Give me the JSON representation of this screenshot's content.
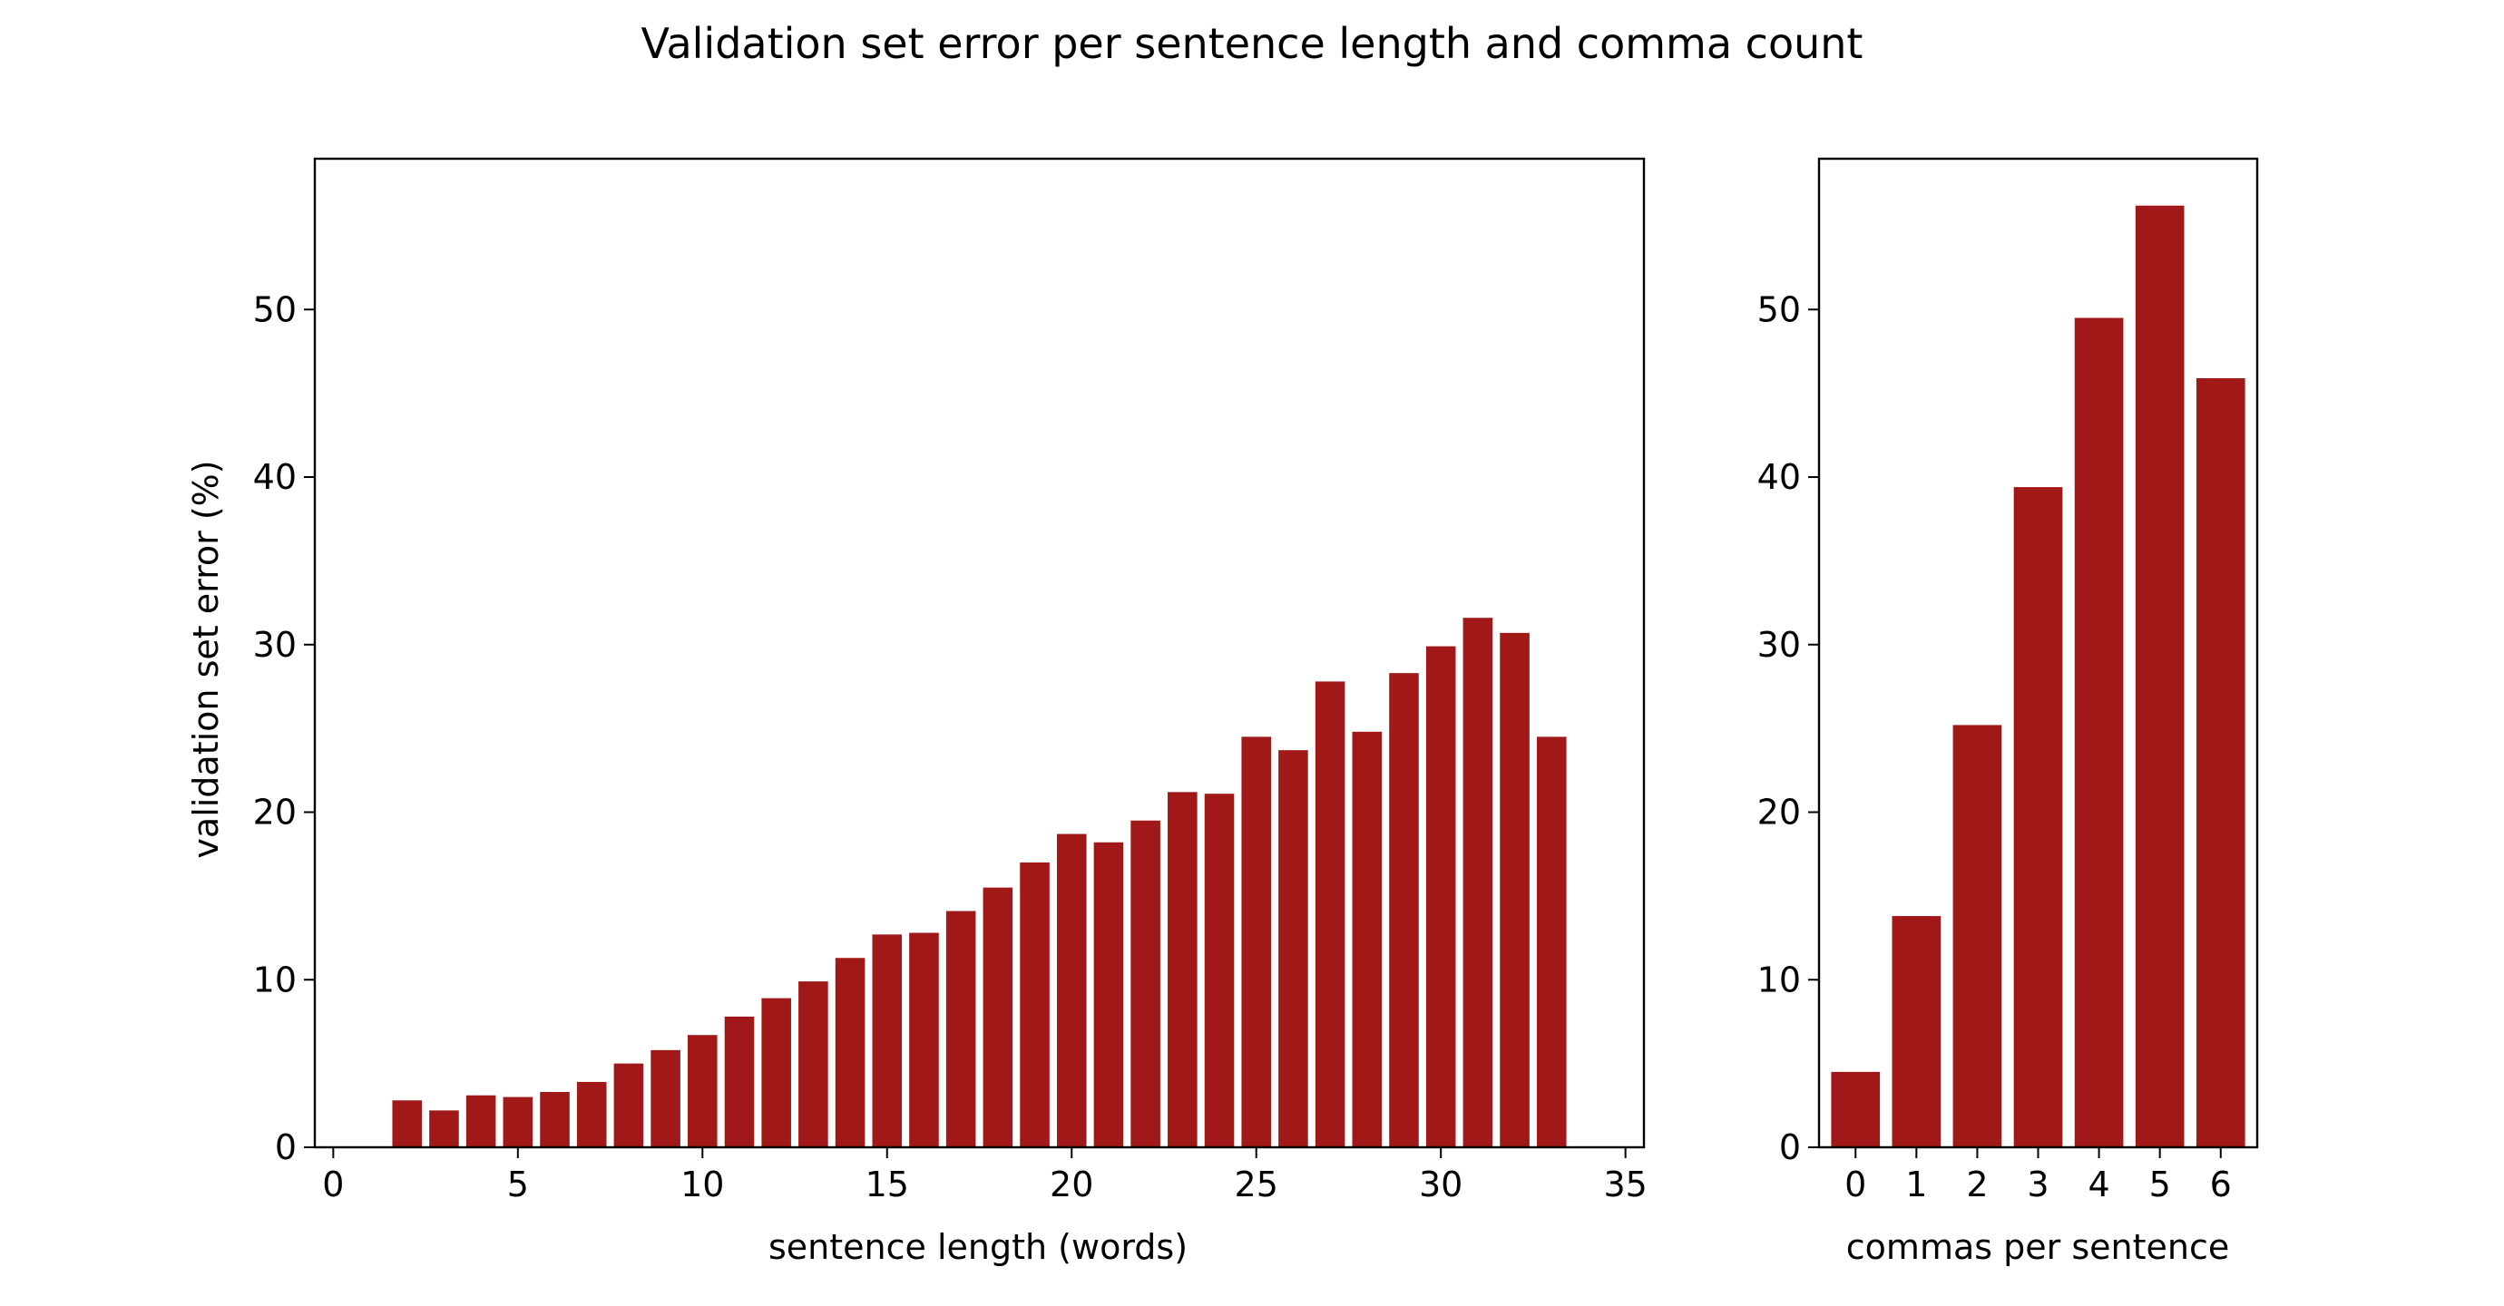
{
  "figure": {
    "title": "Validation set error per sentence length and comma count"
  },
  "chart_data": [
    {
      "type": "bar",
      "xlabel": "sentence length (words)",
      "ylabel": "validation set error (%)",
      "bar_color": "#a11818",
      "xlim": [
        -0.5,
        35.5
      ],
      "ylim": [
        0,
        59
      ],
      "xticks": [
        0,
        5,
        10,
        15,
        20,
        25,
        30,
        35
      ],
      "yticks": [
        0,
        10,
        20,
        30,
        40,
        50
      ],
      "x": [
        2,
        3,
        4,
        5,
        6,
        7,
        8,
        9,
        10,
        11,
        12,
        13,
        14,
        15,
        16,
        17,
        18,
        19,
        20,
        21,
        22,
        23,
        24,
        25,
        26,
        27,
        28,
        29,
        30,
        31,
        32,
        33
      ],
      "values": [
        2.8,
        2.2,
        3.1,
        3.0,
        3.3,
        3.9,
        5.0,
        5.8,
        6.7,
        7.8,
        8.9,
        9.9,
        11.3,
        12.7,
        12.8,
        14.1,
        15.5,
        17.0,
        18.7,
        18.2,
        19.5,
        21.2,
        21.1,
        24.5,
        23.7,
        27.8,
        24.8,
        28.3,
        29.9,
        31.6,
        30.7,
        24.5
      ]
    },
    {
      "type": "bar",
      "xlabel": "commas per sentence",
      "ylabel": "",
      "bar_color": "#a11818",
      "xlim": [
        -0.6,
        6.6
      ],
      "ylim": [
        0,
        59
      ],
      "xticks": [
        0,
        1,
        2,
        3,
        4,
        5,
        6
      ],
      "yticks": [
        0,
        10,
        20,
        30,
        40,
        50
      ],
      "x": [
        0,
        1,
        2,
        3,
        4,
        5,
        6
      ],
      "values": [
        4.5,
        13.8,
        25.2,
        39.4,
        49.5,
        56.2,
        45.9
      ]
    }
  ]
}
